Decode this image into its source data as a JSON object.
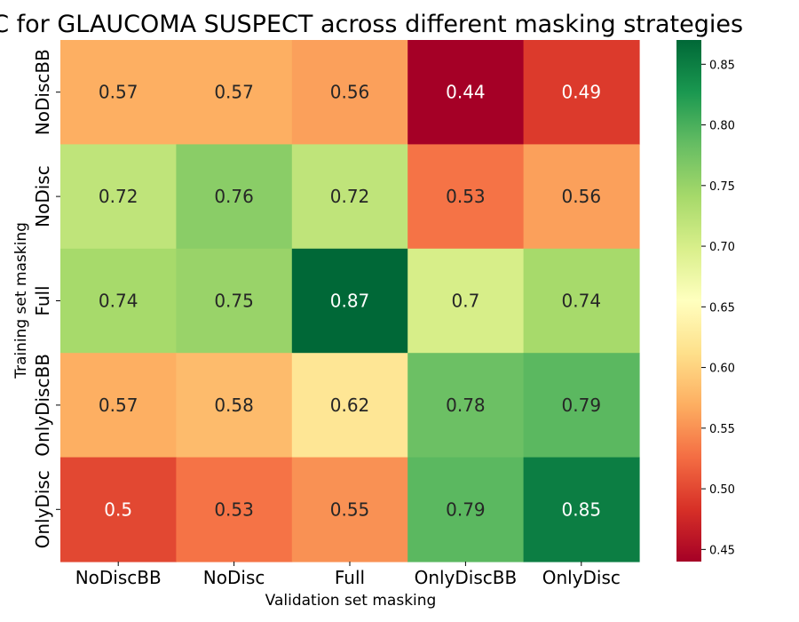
{
  "chart_data": {
    "type": "heatmap",
    "title": "AUC for GLAUCOMA SUSPECT across different masking strategies",
    "xlabel": "Validation set masking",
    "ylabel": "Training set masking",
    "x_categories": [
      "NoDiscBB",
      "NoDisc",
      "Full",
      "OnlyDiscBB",
      "OnlyDisc"
    ],
    "y_categories": [
      "NoDiscBB",
      "NoDisc",
      "Full",
      "OnlyDiscBB",
      "OnlyDisc"
    ],
    "values": [
      [
        0.57,
        0.57,
        0.56,
        0.44,
        0.49
      ],
      [
        0.72,
        0.76,
        0.72,
        0.53,
        0.56
      ],
      [
        0.74,
        0.75,
        0.87,
        0.7,
        0.74
      ],
      [
        0.57,
        0.58,
        0.62,
        0.78,
        0.79
      ],
      [
        0.5,
        0.53,
        0.55,
        0.79,
        0.85
      ]
    ],
    "cell_labels": [
      [
        "0.57",
        "0.57",
        "0.56",
        "0.44",
        "0.49"
      ],
      [
        "0.72",
        "0.76",
        "0.72",
        "0.53",
        "0.56"
      ],
      [
        "0.74",
        "0.75",
        "0.87",
        "0.7",
        "0.74"
      ],
      [
        "0.57",
        "0.58",
        "0.62",
        "0.78",
        "0.79"
      ],
      [
        "0.5",
        "0.53",
        "0.55",
        "0.79",
        "0.85"
      ]
    ],
    "colormap": "RdYlGn",
    "colorbar": {
      "range": [
        0.44,
        0.87
      ],
      "ticks": [
        0.45,
        0.5,
        0.55,
        0.6,
        0.65,
        0.7,
        0.75,
        0.8,
        0.85
      ],
      "tick_labels": [
        "0.45",
        "0.50",
        "0.55",
        "0.60",
        "0.65",
        "0.70",
        "0.75",
        "0.80",
        "0.85"
      ]
    }
  }
}
